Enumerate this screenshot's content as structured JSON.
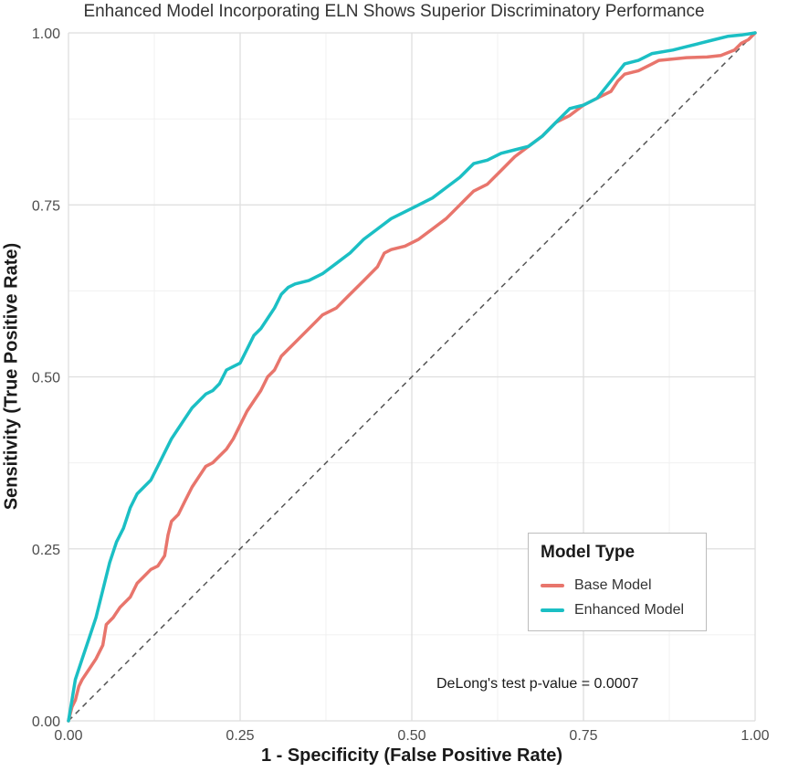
{
  "chart_data": {
    "type": "line",
    "title": "Enhanced Model Incorporating ELN Shows Superior Discriminatory Performance",
    "xlabel": "1 - Specificity (False Positive Rate)",
    "ylabel": "Sensitivity (True Positive Rate)",
    "xlim": [
      0,
      1
    ],
    "ylim": [
      0,
      1
    ],
    "xticks": [
      "0.00",
      "0.25",
      "0.50",
      "0.75",
      "1.00"
    ],
    "yticks": [
      "0.00",
      "0.25",
      "0.50",
      "0.75",
      "1.00"
    ],
    "grid": true,
    "legend": {
      "title": "Model Type",
      "position": "bottom-right"
    },
    "reference_line": {
      "style": "dashed",
      "color": "#555555",
      "points": [
        [
          0,
          0
        ],
        [
          1,
          1
        ]
      ]
    },
    "annotation": "DeLong's test p-value = 0.0007",
    "series": [
      {
        "name": "Base Model",
        "color": "#E8756C",
        "points": [
          [
            0,
            0
          ],
          [
            0.005,
            0.02
          ],
          [
            0.01,
            0.03
          ],
          [
            0.015,
            0.05
          ],
          [
            0.02,
            0.06
          ],
          [
            0.03,
            0.075
          ],
          [
            0.04,
            0.09
          ],
          [
            0.05,
            0.11
          ],
          [
            0.055,
            0.14
          ],
          [
            0.065,
            0.15
          ],
          [
            0.075,
            0.165
          ],
          [
            0.09,
            0.18
          ],
          [
            0.1,
            0.2
          ],
          [
            0.11,
            0.21
          ],
          [
            0.12,
            0.22
          ],
          [
            0.13,
            0.225
          ],
          [
            0.14,
            0.24
          ],
          [
            0.145,
            0.27
          ],
          [
            0.15,
            0.29
          ],
          [
            0.16,
            0.3
          ],
          [
            0.17,
            0.32
          ],
          [
            0.18,
            0.34
          ],
          [
            0.19,
            0.355
          ],
          [
            0.2,
            0.37
          ],
          [
            0.21,
            0.375
          ],
          [
            0.22,
            0.385
          ],
          [
            0.23,
            0.395
          ],
          [
            0.24,
            0.41
          ],
          [
            0.25,
            0.43
          ],
          [
            0.26,
            0.45
          ],
          [
            0.27,
            0.465
          ],
          [
            0.28,
            0.48
          ],
          [
            0.29,
            0.5
          ],
          [
            0.3,
            0.51
          ],
          [
            0.31,
            0.53
          ],
          [
            0.32,
            0.54
          ],
          [
            0.33,
            0.55
          ],
          [
            0.35,
            0.57
          ],
          [
            0.36,
            0.58
          ],
          [
            0.37,
            0.59
          ],
          [
            0.39,
            0.6
          ],
          [
            0.41,
            0.62
          ],
          [
            0.43,
            0.64
          ],
          [
            0.45,
            0.66
          ],
          [
            0.46,
            0.68
          ],
          [
            0.47,
            0.685
          ],
          [
            0.49,
            0.69
          ],
          [
            0.51,
            0.7
          ],
          [
            0.53,
            0.715
          ],
          [
            0.55,
            0.73
          ],
          [
            0.57,
            0.75
          ],
          [
            0.59,
            0.77
          ],
          [
            0.61,
            0.78
          ],
          [
            0.63,
            0.8
          ],
          [
            0.65,
            0.82
          ],
          [
            0.67,
            0.835
          ],
          [
            0.69,
            0.85
          ],
          [
            0.71,
            0.87
          ],
          [
            0.73,
            0.88
          ],
          [
            0.75,
            0.895
          ],
          [
            0.77,
            0.905
          ],
          [
            0.79,
            0.915
          ],
          [
            0.8,
            0.93
          ],
          [
            0.81,
            0.94
          ],
          [
            0.83,
            0.945
          ],
          [
            0.85,
            0.955
          ],
          [
            0.86,
            0.96
          ],
          [
            0.88,
            0.962
          ],
          [
            0.9,
            0.964
          ],
          [
            0.93,
            0.965
          ],
          [
            0.95,
            0.967
          ],
          [
            0.97,
            0.975
          ],
          [
            0.98,
            0.985
          ],
          [
            0.99,
            0.99
          ],
          [
            1,
            1
          ]
        ]
      },
      {
        "name": "Enhanced Model",
        "color": "#1BBFC4",
        "points": [
          [
            0,
            0
          ],
          [
            0.005,
            0.03
          ],
          [
            0.01,
            0.06
          ],
          [
            0.02,
            0.09
          ],
          [
            0.03,
            0.12
          ],
          [
            0.04,
            0.15
          ],
          [
            0.05,
            0.19
          ],
          [
            0.06,
            0.23
          ],
          [
            0.07,
            0.26
          ],
          [
            0.08,
            0.28
          ],
          [
            0.09,
            0.31
          ],
          [
            0.1,
            0.33
          ],
          [
            0.11,
            0.34
          ],
          [
            0.12,
            0.35
          ],
          [
            0.13,
            0.37
          ],
          [
            0.14,
            0.39
          ],
          [
            0.15,
            0.41
          ],
          [
            0.16,
            0.425
          ],
          [
            0.17,
            0.44
          ],
          [
            0.18,
            0.455
          ],
          [
            0.19,
            0.465
          ],
          [
            0.2,
            0.475
          ],
          [
            0.21,
            0.48
          ],
          [
            0.22,
            0.49
          ],
          [
            0.23,
            0.51
          ],
          [
            0.24,
            0.515
          ],
          [
            0.25,
            0.52
          ],
          [
            0.26,
            0.54
          ],
          [
            0.27,
            0.56
          ],
          [
            0.28,
            0.57
          ],
          [
            0.29,
            0.585
          ],
          [
            0.3,
            0.6
          ],
          [
            0.31,
            0.62
          ],
          [
            0.32,
            0.63
          ],
          [
            0.33,
            0.635
          ],
          [
            0.35,
            0.64
          ],
          [
            0.37,
            0.65
          ],
          [
            0.39,
            0.665
          ],
          [
            0.41,
            0.68
          ],
          [
            0.43,
            0.7
          ],
          [
            0.45,
            0.715
          ],
          [
            0.47,
            0.73
          ],
          [
            0.49,
            0.74
          ],
          [
            0.51,
            0.75
          ],
          [
            0.53,
            0.76
          ],
          [
            0.55,
            0.775
          ],
          [
            0.57,
            0.79
          ],
          [
            0.59,
            0.81
          ],
          [
            0.61,
            0.815
          ],
          [
            0.63,
            0.825
          ],
          [
            0.65,
            0.83
          ],
          [
            0.67,
            0.835
          ],
          [
            0.69,
            0.85
          ],
          [
            0.71,
            0.87
          ],
          [
            0.73,
            0.89
          ],
          [
            0.75,
            0.895
          ],
          [
            0.77,
            0.905
          ],
          [
            0.79,
            0.93
          ],
          [
            0.81,
            0.955
          ],
          [
            0.83,
            0.96
          ],
          [
            0.85,
            0.97
          ],
          [
            0.88,
            0.975
          ],
          [
            0.9,
            0.98
          ],
          [
            0.92,
            0.985
          ],
          [
            0.94,
            0.99
          ],
          [
            0.96,
            0.995
          ],
          [
            0.98,
            0.997
          ],
          [
            1,
            1
          ]
        ]
      }
    ]
  }
}
